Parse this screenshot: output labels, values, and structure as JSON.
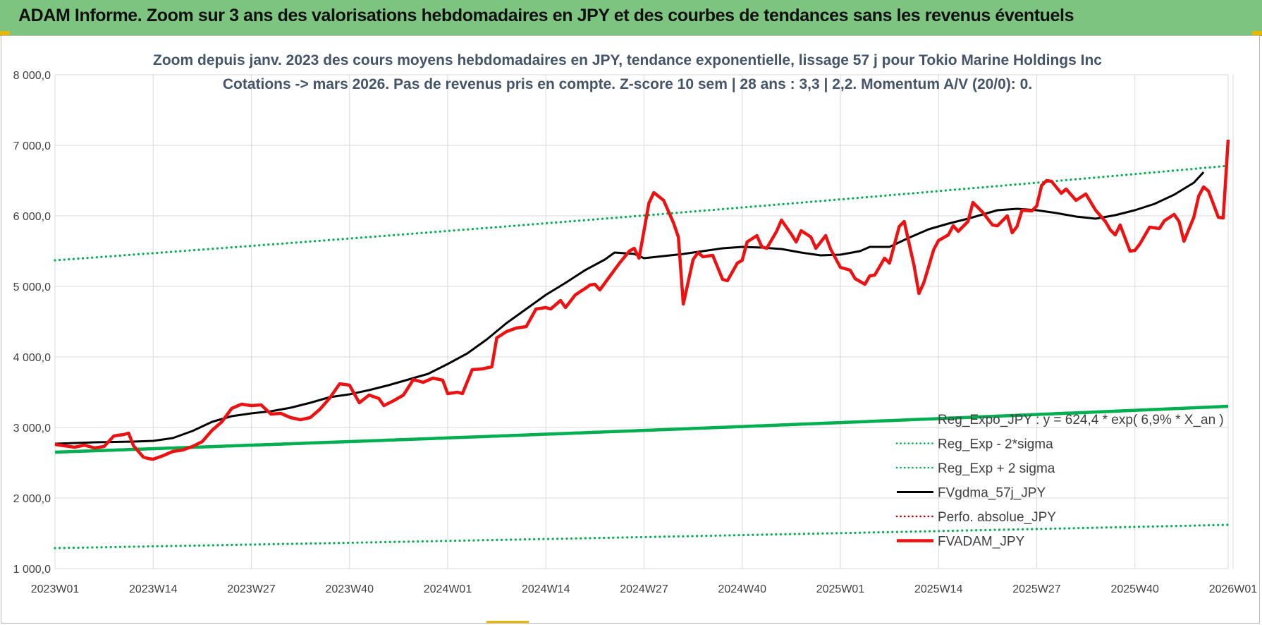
{
  "header": {
    "title": "ADAM Informe. Zoom sur 3 ans des valorisations hebdomadaires en JPY et des courbes de tendances sans les revenus éventuels"
  },
  "chart_data": {
    "type": "line",
    "title": "Zoom depuis janv. 2023 des cours moyens hebdomadaires en JPY, tendance exponentielle, lissage 57 j pour Tokio Marine Holdings Inc",
    "subtitle": "Cotations -> mars 2026. Pas de revenus pris en compte. Z-score 10 sem | 28 ans : 3,3 | 2,2. Momentum A/V (20/0): 0.",
    "xlabel": "",
    "ylabel": "",
    "ylim": [
      1000,
      8000
    ],
    "y_ticks": [
      "1 000,0",
      "2 000,0",
      "3 000,0",
      "4 000,0",
      "5 000,0",
      "6 000,0",
      "7 000,0",
      "8 000,0"
    ],
    "x_tick_labels": [
      "2023W01",
      "2023W14",
      "2023W27",
      "2023W40",
      "2024W01",
      "2024W14",
      "2024W27",
      "2024W40",
      "2025W01",
      "2025W14",
      "2025W27",
      "2025W40",
      "2026W01"
    ],
    "grid": true,
    "legend_position": "bottom-right",
    "series": [
      {
        "name": "Reg_Expo_JPY : y = 624,4 * exp( 6,9% *  X_an )",
        "color": "#00b050",
        "style": "solid-thick",
        "trend": {
          "start": 2650,
          "end": 3300
        }
      },
      {
        "name": "Reg_Exp - 2*sigma",
        "color": "#00b050",
        "style": "dotted",
        "trend": {
          "start": 1290,
          "end": 1620
        }
      },
      {
        "name": "Reg_Exp + 2 sigma",
        "color": "#00b050",
        "style": "dotted",
        "trend": {
          "start": 5370,
          "end": 6710
        }
      },
      {
        "name": "FVgdma_57j_JPY",
        "color": "#000000",
        "style": "solid",
        "points": [
          [
            0,
            2770
          ],
          [
            8,
            2790
          ],
          [
            16,
            2800
          ],
          [
            20,
            2810
          ],
          [
            24,
            2850
          ],
          [
            28,
            2950
          ],
          [
            32,
            3080
          ],
          [
            36,
            3160
          ],
          [
            40,
            3200
          ],
          [
            44,
            3230
          ],
          [
            48,
            3280
          ],
          [
            52,
            3350
          ],
          [
            56,
            3430
          ],
          [
            60,
            3470
          ],
          [
            64,
            3530
          ],
          [
            68,
            3600
          ],
          [
            72,
            3680
          ],
          [
            76,
            3760
          ],
          [
            80,
            3900
          ],
          [
            84,
            4050
          ],
          [
            88,
            4250
          ],
          [
            92,
            4480
          ],
          [
            96,
            4680
          ],
          [
            100,
            4880
          ],
          [
            104,
            5050
          ],
          [
            108,
            5230
          ],
          [
            112,
            5380
          ],
          [
            114,
            5480
          ],
          [
            118,
            5460
          ],
          [
            120,
            5400
          ],
          [
            124,
            5430
          ],
          [
            128,
            5460
          ],
          [
            132,
            5500
          ],
          [
            136,
            5540
          ],
          [
            140,
            5560
          ],
          [
            144,
            5550
          ],
          [
            148,
            5530
          ],
          [
            152,
            5480
          ],
          [
            156,
            5440
          ],
          [
            160,
            5450
          ],
          [
            164,
            5500
          ],
          [
            166,
            5560
          ],
          [
            170,
            5560
          ],
          [
            174,
            5690
          ],
          [
            178,
            5810
          ],
          [
            182,
            5890
          ],
          [
            186,
            5960
          ],
          [
            190,
            6040
          ],
          [
            192,
            6080
          ],
          [
            196,
            6100
          ],
          [
            200,
            6080
          ],
          [
            204,
            6040
          ],
          [
            208,
            5990
          ],
          [
            212,
            5960
          ],
          [
            216,
            6010
          ],
          [
            220,
            6080
          ],
          [
            224,
            6170
          ],
          [
            228,
            6300
          ],
          [
            232,
            6470
          ],
          [
            234,
            6620
          ]
        ]
      },
      {
        "name": "Perfo. absolue_JPY",
        "color": "#c00000",
        "style": "dotted",
        "points": []
      },
      {
        "name": "FVADAM_JPY",
        "color": "#ee1111",
        "style": "solid-thick",
        "points": [
          [
            0,
            2760
          ],
          [
            2,
            2740
          ],
          [
            4,
            2720
          ],
          [
            6,
            2750
          ],
          [
            8,
            2710
          ],
          [
            10,
            2730
          ],
          [
            12,
            2880
          ],
          [
            14,
            2900
          ],
          [
            15,
            2920
          ],
          [
            16,
            2740
          ],
          [
            18,
            2580
          ],
          [
            19,
            2560
          ],
          [
            20,
            2550
          ],
          [
            22,
            2600
          ],
          [
            24,
            2660
          ],
          [
            26,
            2680
          ],
          [
            28,
            2730
          ],
          [
            30,
            2800
          ],
          [
            32,
            2960
          ],
          [
            34,
            3080
          ],
          [
            36,
            3270
          ],
          [
            38,
            3330
          ],
          [
            40,
            3310
          ],
          [
            42,
            3320
          ],
          [
            44,
            3190
          ],
          [
            46,
            3200
          ],
          [
            48,
            3140
          ],
          [
            50,
            3110
          ],
          [
            52,
            3140
          ],
          [
            54,
            3260
          ],
          [
            56,
            3420
          ],
          [
            58,
            3620
          ],
          [
            60,
            3600
          ],
          [
            62,
            3350
          ],
          [
            64,
            3460
          ],
          [
            66,
            3410
          ],
          [
            67,
            3310
          ],
          [
            69,
            3380
          ],
          [
            71,
            3460
          ],
          [
            73,
            3680
          ],
          [
            75,
            3640
          ],
          [
            77,
            3700
          ],
          [
            79,
            3670
          ],
          [
            80,
            3480
          ],
          [
            82,
            3500
          ],
          [
            83,
            3480
          ],
          [
            85,
            3820
          ],
          [
            87,
            3830
          ],
          [
            89,
            3860
          ],
          [
            90,
            4270
          ],
          [
            92,
            4360
          ],
          [
            94,
            4410
          ],
          [
            96,
            4430
          ],
          [
            98,
            4680
          ],
          [
            100,
            4700
          ],
          [
            101,
            4680
          ],
          [
            103,
            4800
          ],
          [
            104,
            4700
          ],
          [
            106,
            4880
          ],
          [
            108,
            4970
          ],
          [
            109,
            5020
          ],
          [
            110,
            5030
          ],
          [
            111,
            4950
          ],
          [
            113,
            5140
          ],
          [
            115,
            5330
          ],
          [
            117,
            5500
          ],
          [
            118,
            5540
          ],
          [
            119,
            5400
          ],
          [
            121,
            6180
          ],
          [
            122,
            6330
          ],
          [
            124,
            6220
          ],
          [
            126,
            5900
          ],
          [
            127,
            5700
          ],
          [
            128,
            4750
          ],
          [
            130,
            5380
          ],
          [
            131,
            5480
          ],
          [
            132,
            5420
          ],
          [
            134,
            5440
          ],
          [
            136,
            5100
          ],
          [
            137,
            5080
          ],
          [
            139,
            5330
          ],
          [
            140,
            5370
          ],
          [
            141,
            5630
          ],
          [
            143,
            5720
          ],
          [
            144,
            5560
          ],
          [
            145,
            5540
          ],
          [
            147,
            5780
          ],
          [
            148,
            5940
          ],
          [
            150,
            5740
          ],
          [
            151,
            5630
          ],
          [
            152,
            5790
          ],
          [
            154,
            5700
          ],
          [
            155,
            5540
          ],
          [
            157,
            5720
          ],
          [
            158,
            5530
          ],
          [
            160,
            5270
          ],
          [
            162,
            5230
          ],
          [
            163,
            5110
          ],
          [
            165,
            5030
          ],
          [
            166,
            5150
          ],
          [
            167,
            5160
          ],
          [
            169,
            5400
          ],
          [
            170,
            5330
          ],
          [
            172,
            5850
          ],
          [
            173,
            5920
          ],
          [
            175,
            5300
          ],
          [
            176,
            4900
          ],
          [
            177,
            5050
          ],
          [
            179,
            5520
          ],
          [
            180,
            5650
          ],
          [
            182,
            5730
          ],
          [
            183,
            5860
          ],
          [
            184,
            5780
          ],
          [
            186,
            5920
          ],
          [
            187,
            6190
          ],
          [
            189,
            6050
          ],
          [
            191,
            5870
          ],
          [
            192,
            5860
          ],
          [
            194,
            6000
          ],
          [
            195,
            5760
          ],
          [
            196,
            5850
          ],
          [
            197,
            6080
          ],
          [
            199,
            6070
          ],
          [
            200,
            6140
          ],
          [
            201,
            6430
          ],
          [
            202,
            6500
          ],
          [
            203,
            6490
          ],
          [
            205,
            6320
          ],
          [
            206,
            6380
          ],
          [
            208,
            6220
          ],
          [
            210,
            6310
          ],
          [
            212,
            6080
          ],
          [
            214,
            5920
          ],
          [
            215,
            5800
          ],
          [
            216,
            5730
          ],
          [
            217,
            5870
          ],
          [
            219,
            5500
          ],
          [
            220,
            5510
          ],
          [
            221,
            5600
          ],
          [
            223,
            5840
          ],
          [
            225,
            5820
          ],
          [
            226,
            5930
          ],
          [
            228,
            6020
          ],
          [
            229,
            5920
          ],
          [
            230,
            5640
          ],
          [
            232,
            5980
          ],
          [
            233,
            6280
          ],
          [
            234,
            6410
          ],
          [
            235,
            6350
          ],
          [
            237,
            5980
          ],
          [
            238,
            5970
          ],
          [
            239,
            7080
          ]
        ]
      }
    ]
  }
}
